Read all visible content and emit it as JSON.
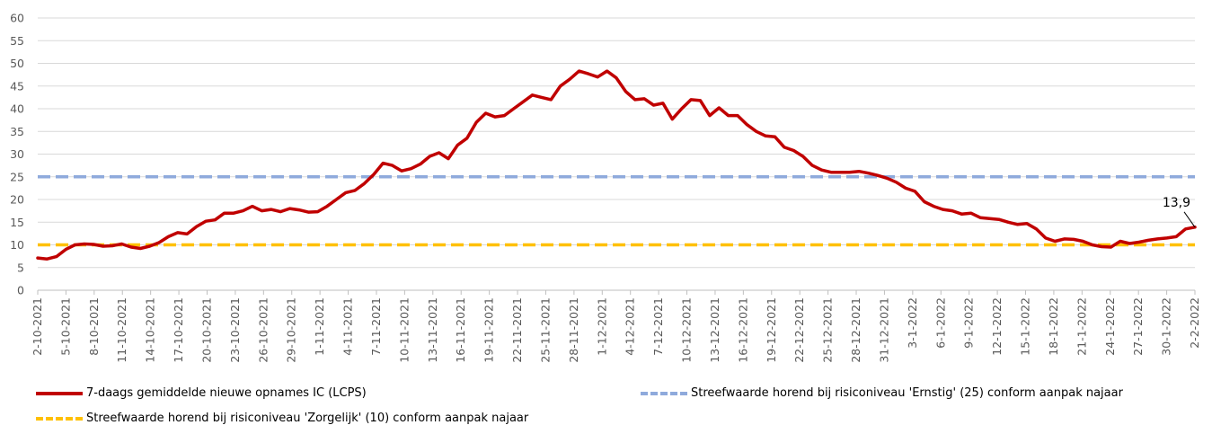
{
  "chart_data": {
    "type": "line",
    "title": "",
    "xlabel": "",
    "ylabel": "",
    "ylim": [
      0,
      60
    ],
    "yticks": [
      0,
      5,
      10,
      15,
      20,
      25,
      30,
      35,
      40,
      45,
      50,
      55,
      60
    ],
    "grid": true,
    "legend_position": "bottom",
    "start_date": "2021-10-02",
    "end_date": "2022-02-02",
    "x_tick_labels": [
      "2-10-2021",
      "5-10-2021",
      "8-10-2021",
      "11-10-2021",
      "14-10-2021",
      "17-10-2021",
      "20-10-2021",
      "23-10-2021",
      "26-10-2021",
      "29-10-2021",
      "1-11-2021",
      "4-11-2021",
      "7-11-2021",
      "10-11-2021",
      "13-11-2021",
      "16-11-2021",
      "19-11-2021",
      "22-11-2021",
      "25-11-2021",
      "28-11-2021",
      "1-12-2021",
      "4-12-2021",
      "7-12-2021",
      "10-12-2021",
      "13-12-2021",
      "16-12-2021",
      "19-12-2021",
      "22-12-2021",
      "25-12-2021",
      "28-12-2021",
      "31-12-2021",
      "3-1-2022",
      "6-1-2022",
      "9-1-2022",
      "12-1-2022",
      "15-1-2022",
      "18-1-2022",
      "21-1-2022",
      "24-1-2022",
      "27-1-2022",
      "30-1-2022",
      "2-2-2022"
    ],
    "series": [
      {
        "name": "7-daags gemiddelde nieuwe opnames IC (LCPS)",
        "color": "#c00000",
        "style": "solid",
        "values": [
          7.1,
          6.9,
          7.4,
          9.0,
          10.0,
          10.2,
          10.1,
          9.7,
          9.8,
          10.2,
          9.5,
          9.2,
          9.7,
          10.5,
          11.8,
          12.7,
          12.4,
          14.0,
          15.2,
          15.5,
          17.0,
          17.0,
          17.5,
          18.5,
          17.5,
          17.8,
          17.3,
          18.0,
          17.7,
          17.2,
          17.3,
          18.5,
          20.0,
          21.5,
          22.0,
          23.5,
          25.5,
          28.0,
          27.5,
          26.3,
          26.8,
          27.8,
          29.5,
          30.3,
          29.0,
          32.0,
          33.5,
          37.0,
          39.0,
          38.2,
          38.5,
          40.0,
          41.5,
          43.0,
          42.5,
          42.0,
          45.0,
          46.5,
          48.3,
          47.7,
          47.0,
          48.3,
          46.8,
          43.8,
          42.0,
          42.2,
          40.8,
          41.2,
          37.7,
          40.0,
          42.0,
          41.8,
          38.5,
          40.2,
          38.5,
          38.5,
          36.5,
          35.0,
          34.0,
          33.8,
          31.5,
          30.8,
          29.5,
          27.5,
          26.5,
          26.0,
          26.0,
          26.0,
          26.2,
          25.8,
          25.3,
          24.7,
          23.8,
          22.5,
          21.8,
          19.5,
          18.5,
          17.8,
          17.5,
          16.8,
          17.0,
          16.0,
          15.8,
          15.6,
          15.0,
          14.5,
          14.7,
          13.5,
          11.5,
          10.8,
          11.3,
          11.2,
          10.8,
          10.0,
          9.6,
          9.5,
          10.8,
          10.3,
          10.6,
          11.0,
          11.3,
          11.5,
          11.8,
          13.5,
          13.9
        ]
      },
      {
        "name": "Streefwaarde horend bij risiconiveau 'Ernstig' (25) conform aanpak najaar",
        "color": "#8faadc",
        "style": "dashed",
        "constant": 25
      },
      {
        "name": "Streefwaarde horend bij risiconiveau 'Zorgelijk' (10) conform aanpak najaar",
        "color": "#ffc000",
        "style": "dashed",
        "constant": 10
      }
    ],
    "annotations": [
      {
        "text": "13,9",
        "x": "2-2-2022",
        "y": 13.9
      }
    ]
  }
}
